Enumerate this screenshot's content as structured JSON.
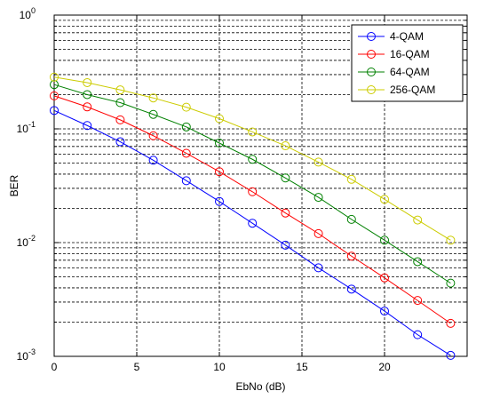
{
  "chart_data": {
    "type": "line",
    "title": "",
    "xlabel": "EbNo (dB)",
    "ylabel": "BER",
    "yscale": "log",
    "xlim": [
      0,
      25
    ],
    "ylim": [
      0.001,
      1
    ],
    "x_ticks": [
      "0",
      "5",
      "10",
      "15",
      "20"
    ],
    "y_ticks": [
      {
        "base": "10",
        "exp": "-3"
      },
      {
        "base": "10",
        "exp": "-2"
      },
      {
        "base": "10",
        "exp": "-1"
      },
      {
        "base": "10",
        "exp": "0"
      }
    ],
    "grid": true,
    "legend_position": "top-right",
    "marker": "circle",
    "x": [
      0,
      2,
      4,
      6,
      8,
      10,
      12,
      14,
      16,
      18,
      20,
      22,
      24
    ],
    "series": [
      {
        "name": "4-QAM",
        "color": "#0000ff",
        "values": [
          0.145,
          0.107,
          0.077,
          0.053,
          0.035,
          0.023,
          0.0148,
          0.0095,
          0.006,
          0.0039,
          0.0025,
          0.00155,
          0.00102
        ]
      },
      {
        "name": "16-QAM",
        "color": "#ff0000",
        "values": [
          0.195,
          0.156,
          0.12,
          0.087,
          0.061,
          0.042,
          0.028,
          0.0182,
          0.012,
          0.0076,
          0.0049,
          0.0031,
          0.00195
        ]
      },
      {
        "name": "64-QAM",
        "color": "#008000",
        "values": [
          0.245,
          0.2,
          0.17,
          0.134,
          0.104,
          0.075,
          0.054,
          0.037,
          0.025,
          0.016,
          0.0105,
          0.0068,
          0.0044
        ]
      },
      {
        "name": "256-QAM",
        "color": "#cccc00",
        "values": [
          0.285,
          0.255,
          0.22,
          0.187,
          0.155,
          0.123,
          0.094,
          0.071,
          0.051,
          0.036,
          0.024,
          0.0158,
          0.0105
        ]
      }
    ]
  }
}
